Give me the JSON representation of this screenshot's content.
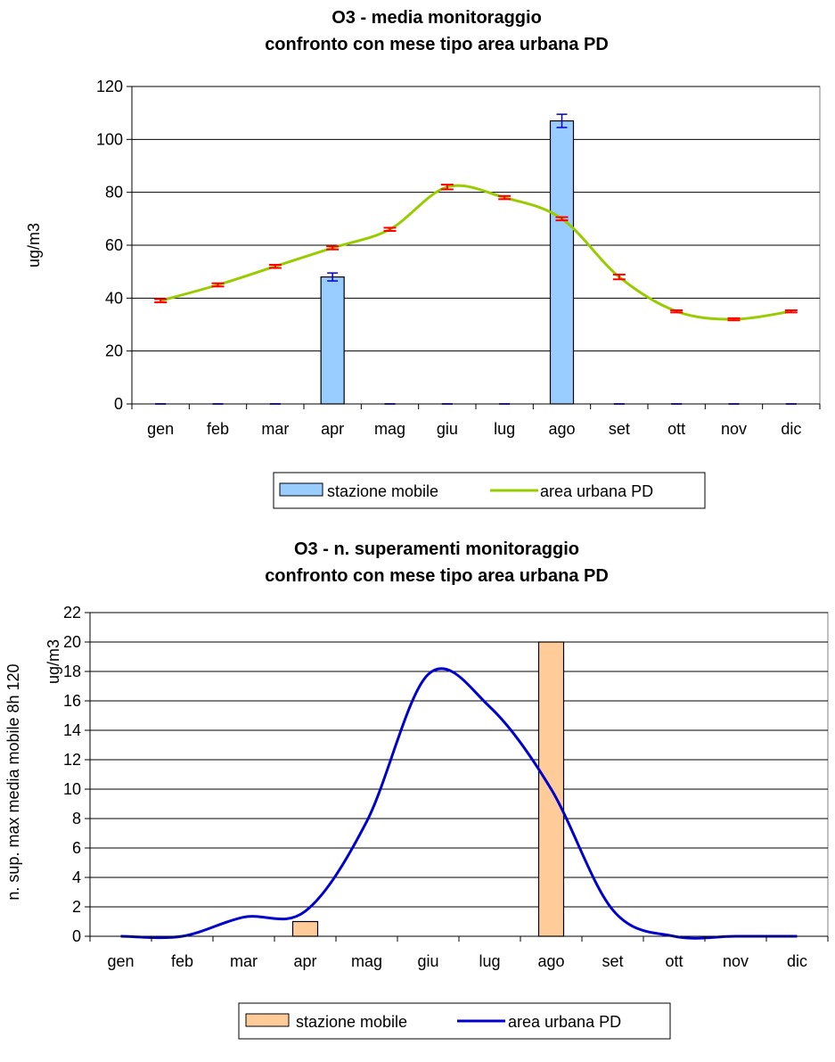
{
  "chart_data": [
    {
      "type": "bar",
      "title_lines": [
        "O3 - media monitoraggio",
        "confronto con mese tipo area urbana PD"
      ],
      "ylabel": "ug/m3",
      "ylim": [
        0,
        120
      ],
      "yticks": [
        0,
        20,
        40,
        60,
        80,
        100,
        120
      ],
      "categories": [
        "gen",
        "feb",
        "mar",
        "apr",
        "mag",
        "giu",
        "lug",
        "ago",
        "set",
        "ott",
        "nov",
        "dic"
      ],
      "series": [
        {
          "name": "stazione mobile",
          "kind": "bar",
          "color": "#99ccff",
          "error_color": "#0000cc",
          "values": [
            0,
            0,
            0,
            48,
            0,
            0,
            0,
            107,
            0,
            0,
            0,
            0
          ],
          "error": [
            0,
            0,
            0,
            1.5,
            0,
            0,
            0,
            2.5,
            0,
            0,
            0,
            0
          ]
        },
        {
          "name": "area urbana PD",
          "kind": "line",
          "color": "#99cc00",
          "error_color": "#ff0000",
          "values": [
            39,
            45,
            52,
            59,
            66,
            82,
            78,
            70,
            48,
            35,
            32,
            35
          ],
          "error": [
            0.6,
            0.6,
            0.6,
            0.6,
            0.6,
            0.9,
            0.6,
            0.6,
            0.9,
            0.4,
            0.4,
            0.4
          ]
        }
      ],
      "legend_position": "bottom",
      "grid": true
    },
    {
      "type": "bar",
      "title_lines": [
        "O3 - n. superamenti monitoraggio",
        "confronto con mese tipo area urbana PD"
      ],
      "ylabel_lines": [
        "n. sup. max media mobile 8h 120",
        "ug/m3"
      ],
      "ylim": [
        0,
        22
      ],
      "yticks": [
        0,
        2,
        4,
        6,
        8,
        10,
        12,
        14,
        16,
        18,
        20,
        22
      ],
      "categories": [
        "gen",
        "feb",
        "mar",
        "apr",
        "mag",
        "giu",
        "lug",
        "ago",
        "set",
        "ott",
        "nov",
        "dic"
      ],
      "series": [
        {
          "name": "stazione mobile",
          "kind": "bar",
          "color": "#ffcc99",
          "values": [
            0,
            0,
            0,
            1,
            0,
            0,
            0,
            20,
            0,
            0,
            0,
            0
          ]
        },
        {
          "name": "area urbana PD",
          "kind": "line",
          "color": "#0000cc",
          "values": [
            0,
            0,
            1.3,
            1.7,
            7.8,
            17.8,
            15.6,
            10.0,
            1.8,
            0,
            0,
            0
          ]
        }
      ],
      "legend_position": "bottom",
      "grid": true
    }
  ]
}
